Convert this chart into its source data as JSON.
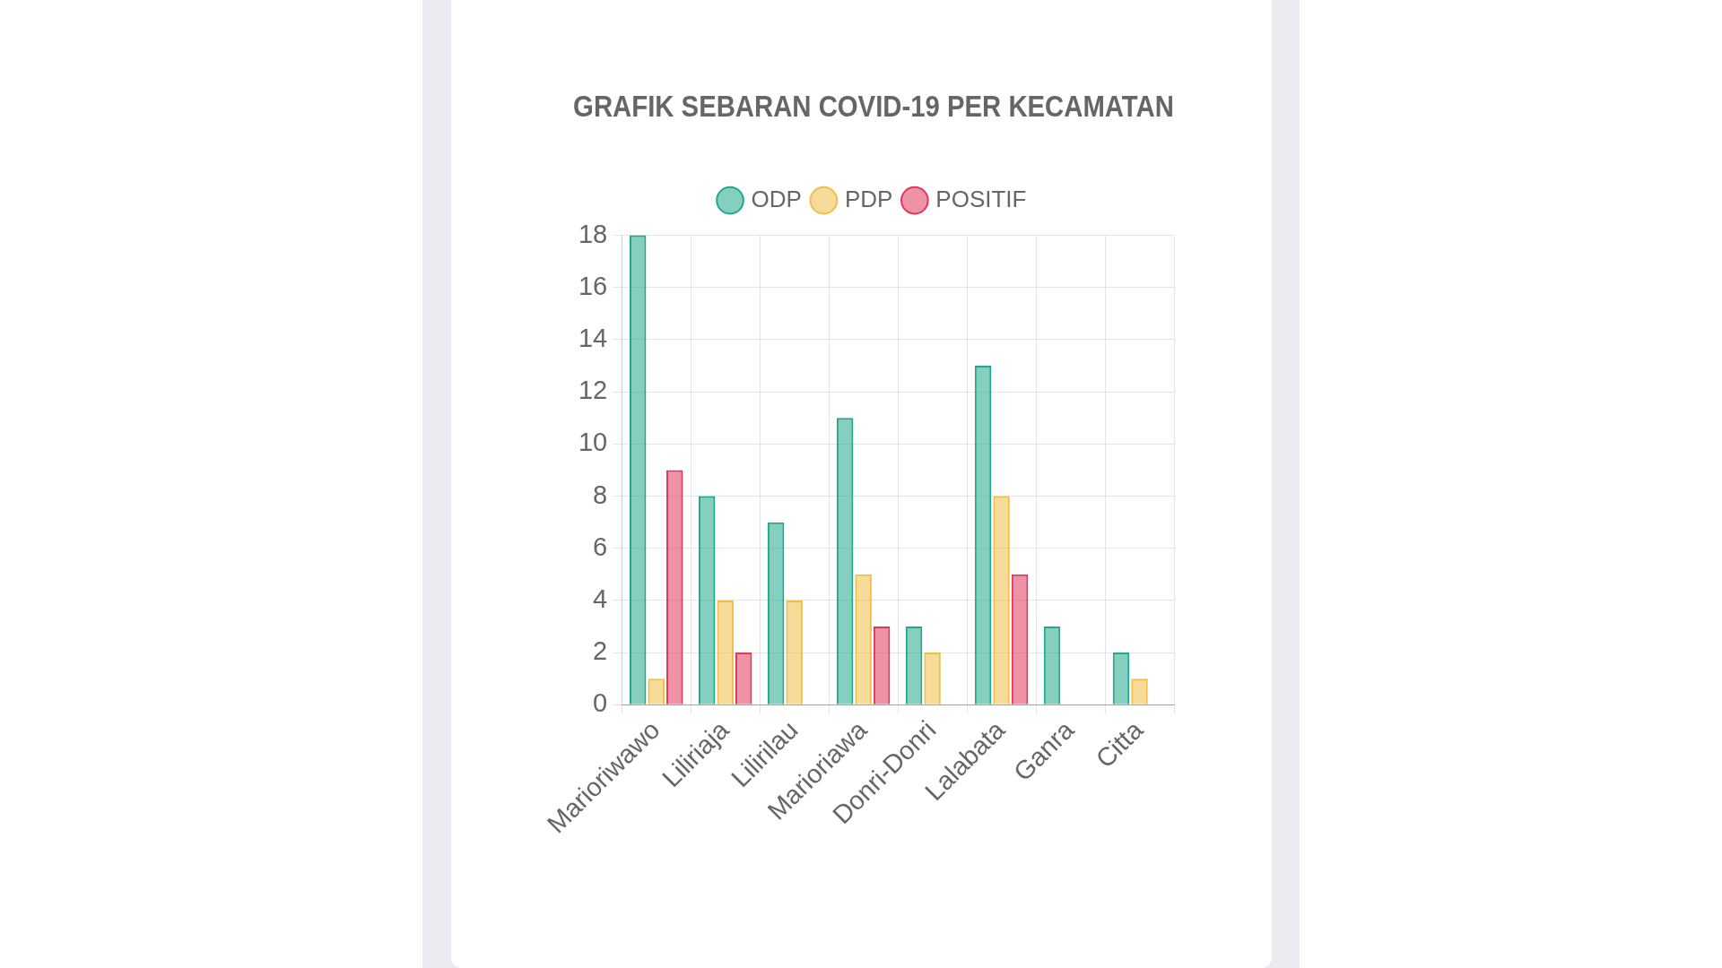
{
  "chart_data": {
    "type": "bar",
    "title": "GRAFIK SEBARAN COVID-19 PER KECAMATAN",
    "categories": [
      "Marioriwawo",
      "Liliriaja",
      "Lilirilau",
      "Marioriawa",
      "Donri-Donri",
      "Lalabata",
      "Ganra",
      "Citta"
    ],
    "series": [
      {
        "name": "ODP",
        "color": "#1fa88c",
        "values": [
          18,
          8,
          7,
          11,
          3,
          13,
          3,
          2
        ]
      },
      {
        "name": "PDP",
        "color": "#f0be46",
        "values": [
          1,
          4,
          4,
          5,
          2,
          8,
          0,
          1
        ]
      },
      {
        "name": "POSITIF",
        "color": "#e0385c",
        "values": [
          9,
          2,
          0,
          3,
          0,
          5,
          0,
          0
        ]
      }
    ],
    "ylim": [
      0,
      18
    ],
    "yticks": [
      0,
      2,
      4,
      6,
      8,
      10,
      12,
      14,
      16,
      18
    ],
    "grid": true,
    "legend": "top"
  }
}
